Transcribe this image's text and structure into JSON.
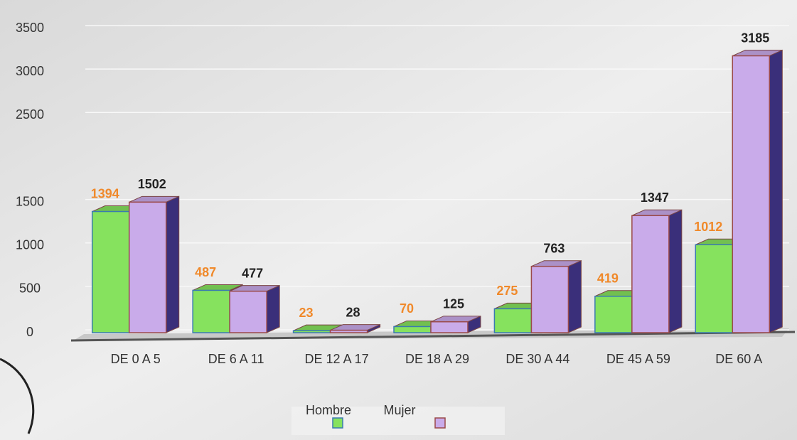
{
  "chart_data": {
    "type": "bar3d",
    "categories": [
      "DE 0 A 5",
      "DE 6 A 11",
      "DE 12 A 17",
      "DE 18 A 29",
      "DE 30 A 44",
      "DE 45 A 59",
      "DE 60 A"
    ],
    "series": [
      {
        "name": "Hombre",
        "color": "#86e25e",
        "label_color": "#f0892a",
        "values": [
          1394,
          487,
          23,
          70,
          275,
          419,
          1012
        ]
      },
      {
        "name": "Mujer",
        "color": "#c9abea",
        "label_color": "#222222",
        "values": [
          1502,
          477,
          28,
          125,
          763,
          1347,
          3185
        ]
      }
    ],
    "ylim": [
      0,
      3500
    ],
    "yticks": [
      0,
      500,
      1000,
      1500,
      2500,
      3000,
      3500
    ],
    "grid": true,
    "legend": "bottom"
  }
}
